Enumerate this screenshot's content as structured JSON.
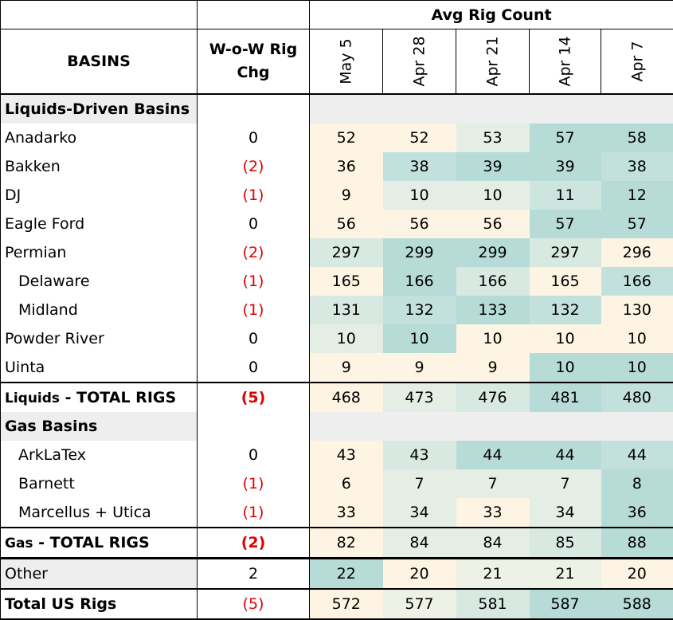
{
  "chart_data": {
    "type": "table",
    "header_group": "Avg Rig Count",
    "col_basin": "BASINS",
    "col_wow": "W-o-W Rig Chg",
    "columns": [
      "May 5",
      "Apr 28",
      "Apr 21",
      "Apr 14",
      "Apr 7"
    ],
    "rows": [
      {
        "label": "Liquids-Driven Basins",
        "kind": "section",
        "wow": "",
        "values": [
          "",
          "",
          "",
          "",
          ""
        ]
      },
      {
        "label": "Anadarko",
        "kind": "row",
        "wow": "0",
        "values": [
          "52",
          "52",
          "53",
          "57",
          "58"
        ],
        "bg": [
          "#fdf4e3",
          "#fdf4e3",
          "#e4eee4",
          "#b7dbd7",
          "#b7dbd7"
        ]
      },
      {
        "label": "Bakken",
        "kind": "row",
        "wow": "(2)",
        "values": [
          "36",
          "38",
          "39",
          "39",
          "38"
        ],
        "bg": [
          "#fdf4e3",
          "#c3e1dc",
          "#b7dbd7",
          "#b7dbd7",
          "#c3e1dc"
        ]
      },
      {
        "label": "DJ",
        "kind": "row",
        "wow": "(1)",
        "values": [
          "9",
          "10",
          "10",
          "11",
          "12"
        ],
        "bg": [
          "#fdf4e3",
          "#e4eee4",
          "#e4eee4",
          "#cde5df",
          "#b7dbd7"
        ]
      },
      {
        "label": "Eagle Ford",
        "kind": "row",
        "wow": "0",
        "values": [
          "56",
          "56",
          "56",
          "57",
          "57"
        ],
        "bg": [
          "#fdf4e3",
          "#fdf4e3",
          "#fdf4e3",
          "#b7dbd7",
          "#b7dbd7"
        ]
      },
      {
        "label": "Permian",
        "kind": "row",
        "wow": "(2)",
        "values": [
          "297",
          "299",
          "299",
          "297",
          "296"
        ],
        "bg": [
          "#d8e9e1",
          "#b7dbd7",
          "#b7dbd7",
          "#d8e9e1",
          "#fdf4e3"
        ]
      },
      {
        "label": "Delaware",
        "kind": "row",
        "indent": true,
        "wow": "(1)",
        "values": [
          "165",
          "166",
          "166",
          "165",
          "166"
        ],
        "bg": [
          "#fdf4e3",
          "#b7dbd7",
          "#d8e9e1",
          "#fdf4e3",
          "#c3e1dc"
        ]
      },
      {
        "label": "Midland",
        "kind": "row",
        "indent": true,
        "wow": "(1)",
        "values": [
          "131",
          "132",
          "133",
          "132",
          "130"
        ],
        "bg": [
          "#d8e9e1",
          "#c3e1dc",
          "#b7dbd7",
          "#c3e1dc",
          "#fdf4e3"
        ]
      },
      {
        "label": "Powder River",
        "kind": "row",
        "wow": "0",
        "values": [
          "10",
          "10",
          "10",
          "10",
          "10"
        ],
        "bg": [
          "#e4eee4",
          "#b7dbd7",
          "#fdf4e3",
          "#fdf4e3",
          "#fdf4e3"
        ]
      },
      {
        "label": "Uinta",
        "kind": "row",
        "wow": "0",
        "values": [
          "9",
          "9",
          "9",
          "10",
          "10"
        ],
        "bg": [
          "#fdf4e3",
          "#fdf4e3",
          "#fdf4e3",
          "#b7dbd7",
          "#b7dbd7"
        ]
      },
      {
        "label_a": "Liquids",
        "label_b": " - TOTAL RIGS",
        "kind": "total",
        "wow": "(5)",
        "values": [
          "468",
          "473",
          "476",
          "481",
          "480"
        ],
        "bg": [
          "#fdf4e3",
          "#e4eee4",
          "#d8e9e1",
          "#b7dbd7",
          "#c3e1dc"
        ]
      },
      {
        "label": "Gas Basins",
        "kind": "section",
        "wow": "",
        "values": [
          "",
          "",
          "",
          "",
          ""
        ]
      },
      {
        "label": "ArkLaTex",
        "kind": "row",
        "indent": true,
        "wow": "0",
        "values": [
          "43",
          "43",
          "44",
          "44",
          "44"
        ],
        "bg": [
          "#fdf4e3",
          "#d8e9e1",
          "#b7dbd7",
          "#b7dbd7",
          "#c3e1dc"
        ]
      },
      {
        "label": "Barnett",
        "kind": "row",
        "indent": true,
        "wow": "(1)",
        "values": [
          "6",
          "7",
          "7",
          "7",
          "8"
        ],
        "bg": [
          "#fdf4e3",
          "#e4eee4",
          "#e4eee4",
          "#e4eee4",
          "#b7dbd7"
        ]
      },
      {
        "label": "Marcellus + Utica",
        "kind": "row",
        "indent": true,
        "wow": "(1)",
        "values": [
          "33",
          "34",
          "33",
          "34",
          "36"
        ],
        "bg": [
          "#fdf4e3",
          "#e4eee4",
          "#fdf4e3",
          "#e4eee4",
          "#b7dbd7"
        ]
      },
      {
        "label_a": "Gas",
        "label_b": " - TOTAL RIGS",
        "kind": "total",
        "wow": "(2)",
        "values": [
          "82",
          "84",
          "84",
          "85",
          "88"
        ],
        "bg": [
          "#fdf4e3",
          "#e4eee4",
          "#e4eee4",
          "#d8e9e1",
          "#b7dbd7"
        ]
      },
      {
        "label": "Other",
        "kind": "other",
        "wow": "2",
        "values": [
          "22",
          "20",
          "21",
          "21",
          "20"
        ],
        "bg": [
          "#b7dbd7",
          "#fdf4e3",
          "#eef1e6",
          "#eef1e6",
          "#fdf4e3"
        ]
      },
      {
        "label": "Total US Rigs",
        "kind": "grand",
        "wow": "(5)",
        "values": [
          "572",
          "577",
          "581",
          "587",
          "588"
        ],
        "bg": [
          "#fdf4e3",
          "#eef1e6",
          "#d8e9e1",
          "#b7dbd7",
          "#b7dbd7"
        ]
      }
    ]
  }
}
